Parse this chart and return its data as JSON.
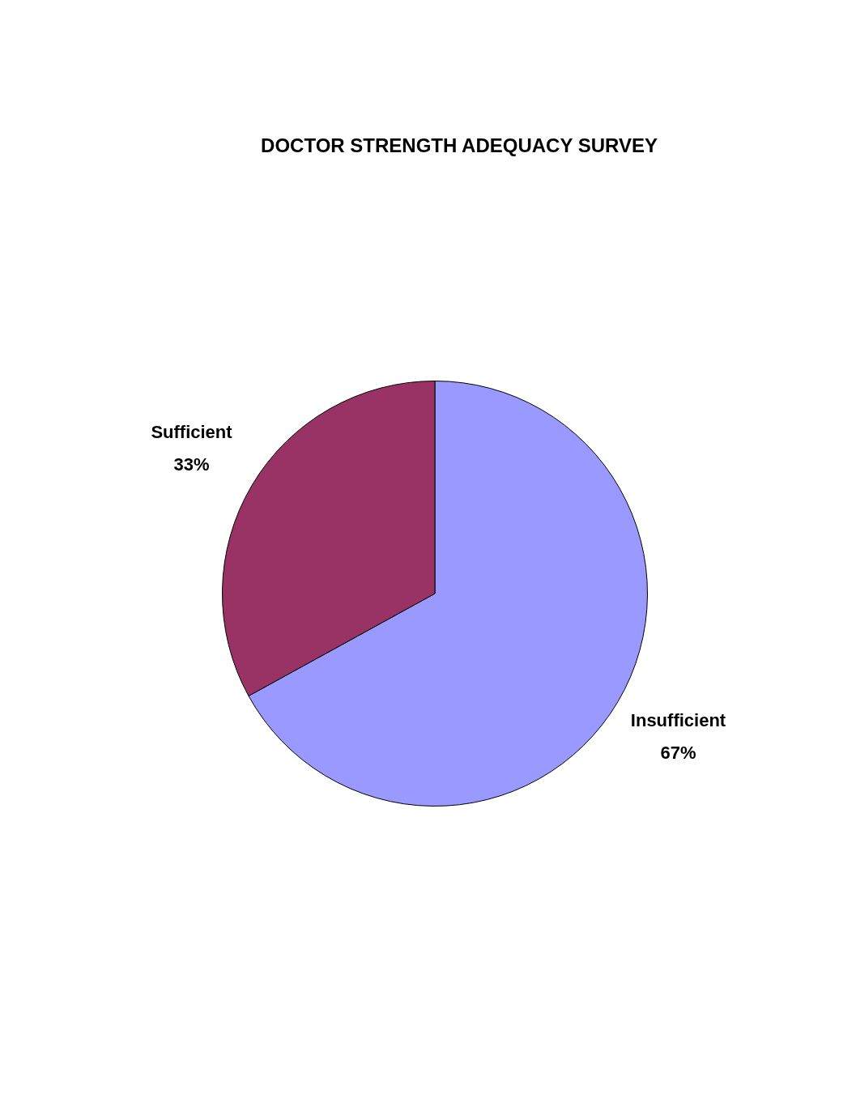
{
  "chart_data": {
    "type": "pie",
    "title": "DOCTOR STRENGTH ADEQUACY SURVEY",
    "categories": [
      "Insufficient",
      "Sufficient"
    ],
    "values": [
      67,
      33
    ],
    "colors": [
      "#9999ff",
      "#993366"
    ],
    "value_labels": [
      "67%",
      "33%"
    ],
    "legend": false
  }
}
